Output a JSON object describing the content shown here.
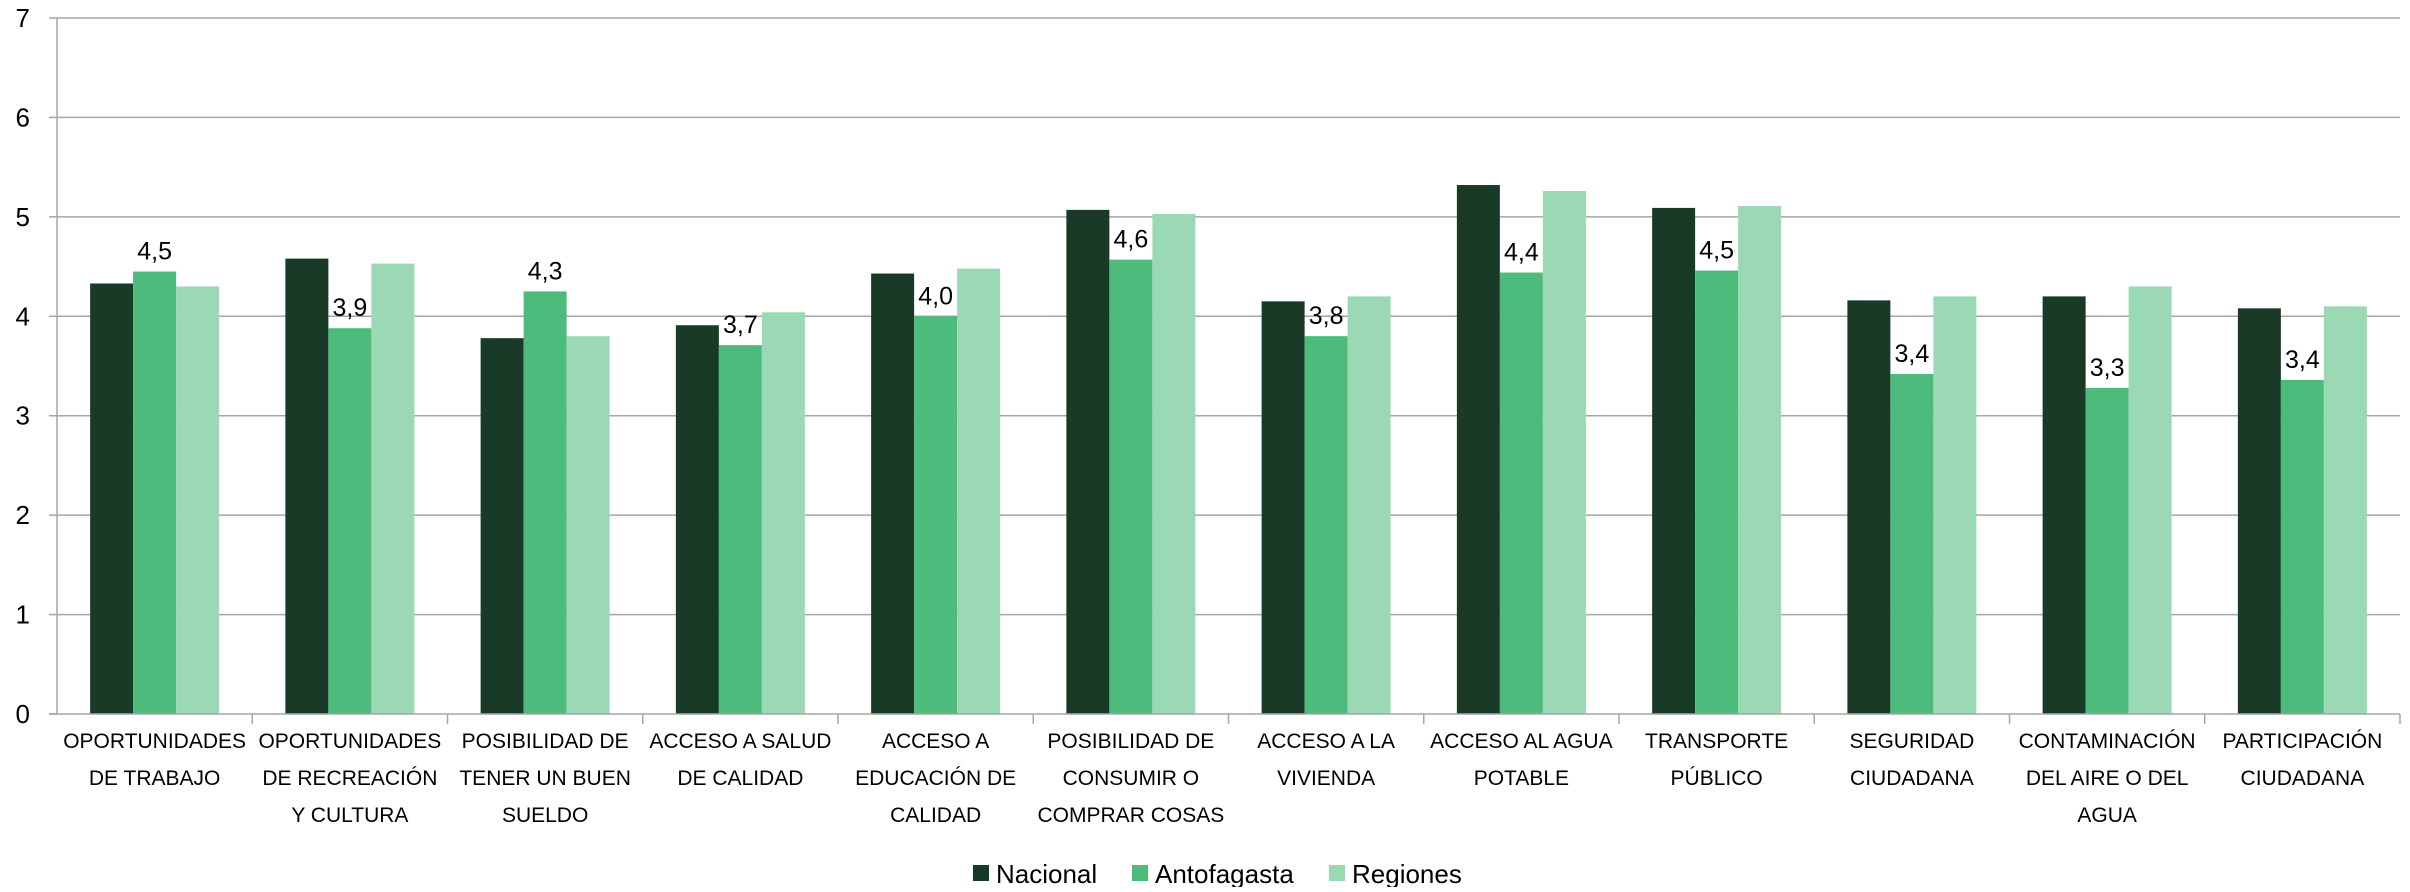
{
  "chart_data": {
    "type": "bar",
    "categories": [
      [
        "OPORTUNIDADES",
        "DE TRABAJO"
      ],
      [
        "OPORTUNIDADES",
        "DE RECREACIÓN",
        "Y CULTURA"
      ],
      [
        "POSIBILIDAD DE",
        "TENER UN BUEN",
        "SUELDO"
      ],
      [
        "ACCESO A SALUD",
        "DE CALIDAD"
      ],
      [
        "ACCESO A",
        "EDUCACIÓN DE",
        "CALIDAD"
      ],
      [
        "POSIBILIDAD DE",
        "CONSUMIR O",
        "COMPRAR COSAS"
      ],
      [
        "ACCESO A LA",
        "VIVIENDA"
      ],
      [
        "ACCESO AL AGUA",
        "POTABLE"
      ],
      [
        "TRANSPORTE",
        "PÚBLICO"
      ],
      [
        "SEGURIDAD",
        "CIUDADANA"
      ],
      [
        "CONTAMINACIÓN",
        "DEL AIRE O DEL",
        "AGUA"
      ],
      [
        "PARTICIPACIÓN",
        "CIUDADANA"
      ]
    ],
    "series": [
      {
        "name": "Nacional",
        "color": "#1a3a28",
        "values": [
          4.33,
          4.58,
          3.78,
          3.91,
          4.43,
          5.07,
          4.15,
          5.32,
          5.09,
          4.16,
          4.2,
          4.08
        ]
      },
      {
        "name": "Antofagasta",
        "color": "#4dbb7c",
        "values": [
          4.45,
          3.88,
          4.25,
          3.71,
          4.0,
          4.57,
          3.8,
          4.44,
          4.46,
          3.42,
          3.28,
          3.36
        ]
      },
      {
        "name": "Regiones",
        "color": "#9ad9b3",
        "values": [
          4.3,
          4.53,
          3.8,
          4.04,
          4.48,
          5.03,
          4.2,
          5.26,
          5.11,
          4.2,
          4.3,
          4.1
        ]
      }
    ],
    "data_labels": {
      "series": "Antofagasta",
      "labels": [
        "4,5",
        "3,9",
        "4,3",
        "3,7",
        "4,0",
        "4,6",
        "3,8",
        "4,4",
        "4,5",
        "3,4",
        "3,3",
        "3,4"
      ]
    },
    "yticks": [
      "0",
      "1",
      "2",
      "3",
      "4",
      "5",
      "6",
      "7"
    ],
    "ylim": [
      0,
      7
    ],
    "grid": true,
    "legend_position": "bottom",
    "title": "",
    "xlabel": "",
    "ylabel": ""
  }
}
